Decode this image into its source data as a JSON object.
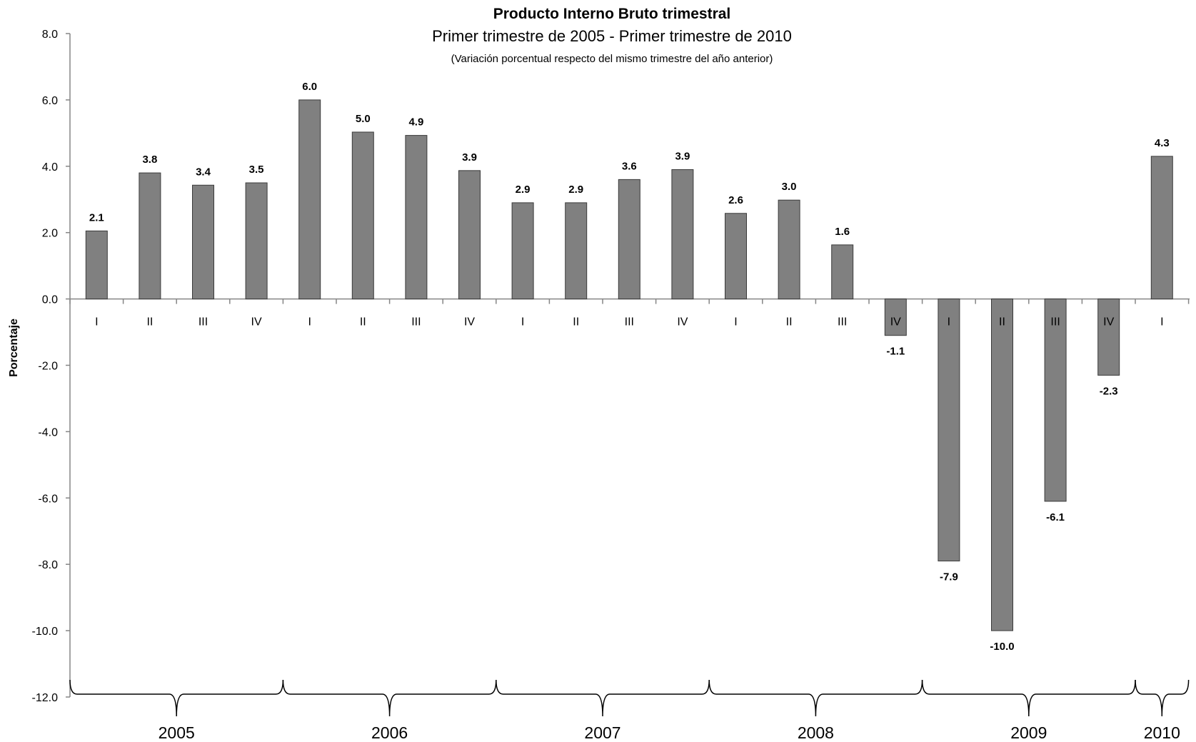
{
  "chart_data": {
    "type": "bar",
    "title": "Producto Interno Bruto trimestral",
    "subtitle": "Primer trimestre de 2005 - Primer trimestre de 2010",
    "note": "(Variación porcentual respecto del mismo trimestre del año anterior)",
    "ylabel": "Porcentaje",
    "ylim": [
      -12.0,
      8.0
    ],
    "yticks": [
      "8.0",
      "6.0",
      "4.0",
      "2.0",
      "0.0",
      "-2.0",
      "-4.0",
      "-6.0",
      "-8.0",
      "-10.0",
      "-12.0"
    ],
    "categories": [
      "I",
      "II",
      "III",
      "IV",
      "I",
      "II",
      "III",
      "IV",
      "I",
      "II",
      "III",
      "IV",
      "I",
      "II",
      "III",
      "IV",
      "I",
      "II",
      "III",
      "IV",
      "I"
    ],
    "values": [
      2.05,
      3.8,
      3.43,
      3.5,
      6.0,
      5.03,
      4.93,
      3.87,
      2.9,
      2.9,
      3.6,
      3.9,
      2.58,
      2.98,
      1.63,
      -1.1,
      -7.9,
      -10.0,
      -6.1,
      -2.3,
      4.3
    ],
    "data_labels": [
      "2.1",
      "3.8",
      "3.4",
      "3.5",
      "6.0",
      "5.0",
      "4.9",
      "3.9",
      "2.9",
      "2.9",
      "3.6",
      "3.9",
      "2.6",
      "3.0",
      "1.6",
      "-1.1",
      "-7.9",
      "-10.0",
      "-6.1",
      "-2.3",
      "4.3"
    ],
    "years": [
      {
        "label": "2005",
        "first": 0,
        "last": 3
      },
      {
        "label": "2006",
        "first": 4,
        "last": 7
      },
      {
        "label": "2007",
        "first": 8,
        "last": 11
      },
      {
        "label": "2008",
        "first": 12,
        "last": 15
      },
      {
        "label": "2009",
        "first": 16,
        "last": 19
      },
      {
        "label": "2010",
        "first": 20,
        "last": 20
      }
    ],
    "bar_color": "#808080",
    "grid": false
  }
}
